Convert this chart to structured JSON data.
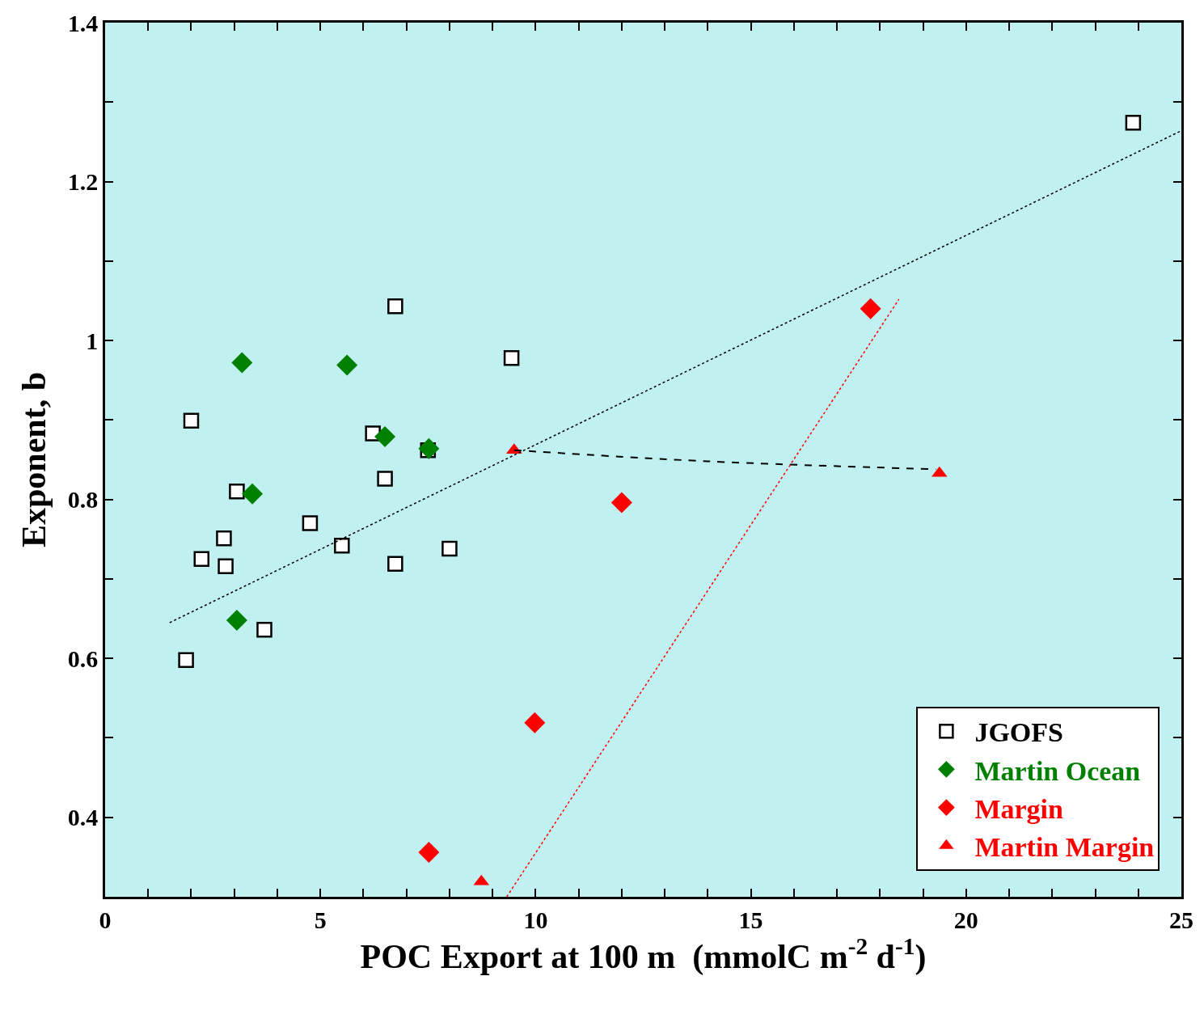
{
  "chart_data": {
    "type": "scatter",
    "xlabel": "POC Export at 100 m  (mmolC m$^{-2}$ d$^{-1}$)",
    "ylabel": "Exponent, b",
    "xlim": [
      0,
      25
    ],
    "ylim": [
      0.3,
      1.4
    ],
    "xticks": [
      0,
      {
        "value": 1,
        "label": null
      },
      {
        "value": 2,
        "label": null
      },
      {
        "value": 3,
        "label": null
      },
      {
        "value": 4,
        "label": null
      },
      5,
      {
        "value": 6,
        "label": null
      },
      {
        "value": 7,
        "label": null
      },
      {
        "value": 8,
        "label": null
      },
      {
        "value": 9,
        "label": null
      },
      10,
      {
        "value": 11,
        "label": null
      },
      {
        "value": 12,
        "label": null
      },
      {
        "value": 13,
        "label": null
      },
      {
        "value": 14,
        "label": null
      },
      15,
      {
        "value": 16,
        "label": null
      },
      {
        "value": 17,
        "label": null
      },
      {
        "value": 18,
        "label": null
      },
      {
        "value": 19,
        "label": null
      },
      20,
      {
        "value": 21,
        "label": null
      },
      {
        "value": 22,
        "label": null
      },
      {
        "value": 23,
        "label": null
      },
      {
        "value": 24,
        "label": null
      },
      25
    ],
    "yticks": [
      {
        "value": 0.3,
        "label": null
      },
      0.4,
      {
        "value": 0.5,
        "label": null
      },
      0.6,
      {
        "value": 0.7,
        "label": null
      },
      0.8,
      {
        "value": 0.9,
        "label": null
      },
      1,
      {
        "value": 1.1,
        "label": null
      },
      1.2,
      {
        "value": 1.3,
        "label": null
      },
      1.4
    ],
    "grid": false,
    "legend": "bottom right",
    "series": [
      {
        "name": "JGOFS",
        "marker": "square",
        "color": "#000000",
        "x": [
          23.88,
          6.74,
          9.44,
          2.0,
          6.22,
          7.5,
          6.5,
          3.06,
          4.76,
          2.76,
          5.5,
          8.0,
          2.24,
          2.8,
          6.74,
          3.7,
          1.88
        ],
        "values": [
          1.274,
          1.043,
          0.978,
          0.899,
          0.883,
          0.862,
          0.826,
          0.81,
          0.77,
          0.751,
          0.742,
          0.738,
          0.725,
          0.716,
          0.719,
          0.636,
          0.598
        ]
      },
      {
        "name": "Martin Ocean",
        "type": "scatter",
        "marker": "diamond",
        "color": "#008000",
        "x": [
          3.18,
          5.62,
          6.5,
          7.52,
          3.42,
          3.06
        ],
        "values": [
          0.972,
          0.969,
          0.879,
          0.864,
          0.807,
          0.648
        ]
      },
      {
        "name": "Margin",
        "type": "scatter",
        "marker": "diamond",
        "color": "#ff0000",
        "x": [
          17.78,
          12.0,
          9.98,
          7.52
        ],
        "values": [
          1.04,
          0.796,
          0.519,
          0.356
        ]
      },
      {
        "name": "Martin Margin",
        "type": "scatter",
        "marker": "triangle",
        "color": "#ff0000",
        "x": [
          9.5,
          19.38,
          8.74
        ],
        "values": [
          0.862,
          0.833,
          0.319
        ]
      },
      {
        "type": "line",
        "line_style": "dotted",
        "color": "#000000",
        "x": [
          1.5,
          25
        ],
        "values": [
          0.645,
          1.264
        ]
      },
      {
        "type": "line",
        "line_style": "dashed",
        "color": "#000000",
        "x": [
          9.5,
          14,
          19.3
        ],
        "values": [
          0.862,
          0.848,
          0.838
        ]
      },
      {
        "type": "line",
        "line_style": "dotted",
        "color": "#ff0000",
        "x": [
          9.33,
          18.44
        ],
        "values": [
          0.3,
          1.052
        ]
      }
    ]
  }
}
